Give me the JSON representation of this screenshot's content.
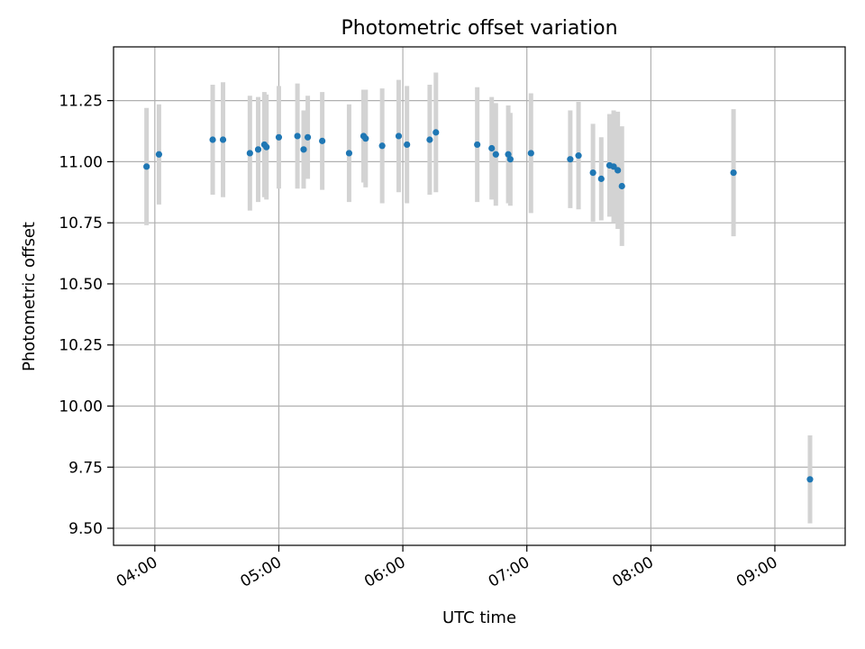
{
  "chart_data": {
    "type": "scatter",
    "title": "Photometric offset variation",
    "xlabel": "UTC time",
    "ylabel": "Photometric offset",
    "x_tick_labels": [
      "04:00",
      "05:00",
      "06:00",
      "07:00",
      "08:00",
      "09:00"
    ],
    "x_tick_values_hours": [
      4,
      5,
      6,
      7,
      8,
      9
    ],
    "y_tick_labels": [
      "9.50",
      "9.75",
      "10.00",
      "10.25",
      "10.50",
      "10.75",
      "11.00",
      "11.25"
    ],
    "y_tick_values": [
      9.5,
      9.75,
      10.0,
      10.25,
      10.5,
      10.75,
      11.0,
      11.25
    ],
    "xlim_hours": [
      3.667,
      9.567
    ],
    "ylim": [
      9.43,
      11.47
    ],
    "grid": true,
    "colors": {
      "point": "#1f77b4",
      "errorbar": "#d3d3d3",
      "grid": "#b0b0b0",
      "axes": "#000000"
    },
    "series": [
      {
        "points": [
          {
            "x": "03:56",
            "y": 10.98,
            "err": 0.24
          },
          {
            "x": "04:02",
            "y": 11.03,
            "err": 0.205
          },
          {
            "x": "04:28",
            "y": 11.09,
            "err": 0.225
          },
          {
            "x": "04:33",
            "y": 11.09,
            "err": 0.235
          },
          {
            "x": "04:46",
            "y": 11.035,
            "err": 0.235
          },
          {
            "x": "04:50",
            "y": 11.05,
            "err": 0.215
          },
          {
            "x": "04:53",
            "y": 11.07,
            "err": 0.215
          },
          {
            "x": "04:54",
            "y": 11.06,
            "err": 0.215
          },
          {
            "x": "05:00",
            "y": 11.1,
            "err": 0.21
          },
          {
            "x": "05:09",
            "y": 11.105,
            "err": 0.215
          },
          {
            "x": "05:12",
            "y": 11.05,
            "err": 0.16
          },
          {
            "x": "05:14",
            "y": 11.1,
            "err": 0.17
          },
          {
            "x": "05:21",
            "y": 11.085,
            "err": 0.2
          },
          {
            "x": "05:34",
            "y": 11.035,
            "err": 0.2
          },
          {
            "x": "05:41",
            "y": 11.105,
            "err": 0.19
          },
          {
            "x": "05:42",
            "y": 11.095,
            "err": 0.2
          },
          {
            "x": "05:50",
            "y": 11.065,
            "err": 0.235
          },
          {
            "x": "05:58",
            "y": 11.105,
            "err": 0.23
          },
          {
            "x": "06:02",
            "y": 11.07,
            "err": 0.24
          },
          {
            "x": "06:13",
            "y": 11.09,
            "err": 0.225
          },
          {
            "x": "06:16",
            "y": 11.12,
            "err": 0.245
          },
          {
            "x": "06:36",
            "y": 11.07,
            "err": 0.235
          },
          {
            "x": "06:43",
            "y": 11.055,
            "err": 0.21
          },
          {
            "x": "06:45",
            "y": 11.03,
            "err": 0.21
          },
          {
            "x": "06:51",
            "y": 11.03,
            "err": 0.2
          },
          {
            "x": "06:52",
            "y": 11.01,
            "err": 0.19
          },
          {
            "x": "07:02",
            "y": 11.035,
            "err": 0.245
          },
          {
            "x": "07:21",
            "y": 11.01,
            "err": 0.2
          },
          {
            "x": "07:25",
            "y": 11.025,
            "err": 0.22
          },
          {
            "x": "07:32",
            "y": 10.955,
            "err": 0.2
          },
          {
            "x": "07:36",
            "y": 10.93,
            "err": 0.17
          },
          {
            "x": "07:40",
            "y": 10.985,
            "err": 0.21
          },
          {
            "x": "07:42",
            "y": 10.98,
            "err": 0.23
          },
          {
            "x": "07:44",
            "y": 10.965,
            "err": 0.24
          },
          {
            "x": "07:46",
            "y": 10.9,
            "err": 0.245
          },
          {
            "x": "08:40",
            "y": 10.955,
            "err": 0.26
          },
          {
            "x": "09:17",
            "y": 9.7,
            "err": 0.18
          }
        ]
      }
    ]
  }
}
